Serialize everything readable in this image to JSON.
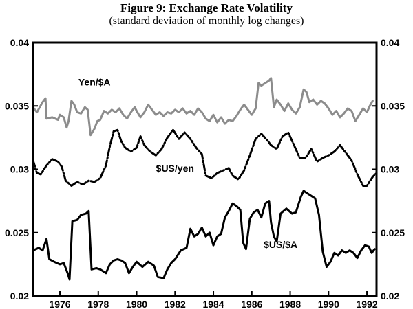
{
  "page": {
    "title": "Figure 9: Exchange Rate Volatility",
    "subtitle": "(standard deviation of monthly log changes)"
  },
  "chart_data": {
    "type": "line",
    "title": "Figure 9: Exchange Rate Volatility",
    "subtitle": "(standard deviation of monthly log changes)",
    "xlabel": "",
    "ylabel": "",
    "xlim": [
      1974.6,
      1992.5
    ],
    "ylim": [
      0.02,
      0.04
    ],
    "x_ticks": [
      1976,
      1978,
      1980,
      1982,
      1984,
      1986,
      1988,
      1990,
      1992
    ],
    "x_tick_labels": [
      "1976",
      "1978",
      "1980",
      "1982",
      "1984",
      "1986",
      "1988",
      "1990",
      "1992"
    ],
    "y_ticks": [
      0.02,
      0.025,
      0.03,
      0.035,
      0.04
    ],
    "y_tick_labels_left": [
      "0.02",
      "0.025",
      "0.03",
      "0.035",
      "0.04"
    ],
    "y_tick_labels_right": [
      "0.02",
      "0.025",
      "0.03",
      "0.035",
      "0.04"
    ],
    "grid": false,
    "series": [
      {
        "name": "Yen/$A",
        "color": "#8c8c8c",
        "style": "solid",
        "label_at": [
          1977.8,
          0.0366
        ],
        "points": [
          [
            1974.6,
            0.0349
          ],
          [
            1974.8,
            0.0345
          ],
          [
            1975.1,
            0.0353
          ],
          [
            1975.25,
            0.0356
          ],
          [
            1975.3,
            0.034
          ],
          [
            1975.6,
            0.0341
          ],
          [
            1975.9,
            0.0339
          ],
          [
            1976.0,
            0.0343
          ],
          [
            1976.2,
            0.0341
          ],
          [
            1976.35,
            0.0333
          ],
          [
            1976.45,
            0.0338
          ],
          [
            1976.6,
            0.0354
          ],
          [
            1976.75,
            0.0351
          ],
          [
            1976.9,
            0.0345
          ],
          [
            1977.1,
            0.0344
          ],
          [
            1977.3,
            0.0349
          ],
          [
            1977.45,
            0.0347
          ],
          [
            1977.6,
            0.0327
          ],
          [
            1977.8,
            0.0332
          ],
          [
            1977.95,
            0.0338
          ],
          [
            1978.1,
            0.0339
          ],
          [
            1978.3,
            0.0346
          ],
          [
            1978.5,
            0.0344
          ],
          [
            1978.7,
            0.0347
          ],
          [
            1978.9,
            0.0345
          ],
          [
            1979.1,
            0.0348
          ],
          [
            1979.3,
            0.0343
          ],
          [
            1979.5,
            0.034
          ],
          [
            1979.7,
            0.0345
          ],
          [
            1979.9,
            0.0349
          ],
          [
            1980.0,
            0.0346
          ],
          [
            1980.2,
            0.0341
          ],
          [
            1980.4,
            0.0345
          ],
          [
            1980.6,
            0.0351
          ],
          [
            1980.8,
            0.0347
          ],
          [
            1981.0,
            0.0343
          ],
          [
            1981.2,
            0.0345
          ],
          [
            1981.4,
            0.0342
          ],
          [
            1981.6,
            0.0345
          ],
          [
            1981.8,
            0.0344
          ],
          [
            1982.0,
            0.0347
          ],
          [
            1982.2,
            0.0345
          ],
          [
            1982.4,
            0.0348
          ],
          [
            1982.6,
            0.0344
          ],
          [
            1982.8,
            0.0346
          ],
          [
            1983.0,
            0.0343
          ],
          [
            1983.2,
            0.0348
          ],
          [
            1983.4,
            0.0345
          ],
          [
            1983.6,
            0.034
          ],
          [
            1983.8,
            0.0338
          ],
          [
            1984.0,
            0.0343
          ],
          [
            1984.2,
            0.0337
          ],
          [
            1984.4,
            0.0341
          ],
          [
            1984.6,
            0.0336
          ],
          [
            1984.8,
            0.0339
          ],
          [
            1985.0,
            0.0338
          ],
          [
            1985.2,
            0.0342
          ],
          [
            1985.4,
            0.0347
          ],
          [
            1985.6,
            0.0351
          ],
          [
            1985.8,
            0.0347
          ],
          [
            1986.0,
            0.0343
          ],
          [
            1986.2,
            0.0348
          ],
          [
            1986.35,
            0.0368
          ],
          [
            1986.5,
            0.0366
          ],
          [
            1986.7,
            0.0368
          ],
          [
            1986.9,
            0.037
          ],
          [
            1987.0,
            0.0372
          ],
          [
            1987.15,
            0.0349
          ],
          [
            1987.3,
            0.0355
          ],
          [
            1987.5,
            0.0351
          ],
          [
            1987.7,
            0.0346
          ],
          [
            1987.9,
            0.0352
          ],
          [
            1988.1,
            0.0347
          ],
          [
            1988.3,
            0.0344
          ],
          [
            1988.5,
            0.0349
          ],
          [
            1988.7,
            0.0363
          ],
          [
            1988.85,
            0.0361
          ],
          [
            1989.0,
            0.0353
          ],
          [
            1989.2,
            0.0355
          ],
          [
            1989.4,
            0.0351
          ],
          [
            1989.6,
            0.0354
          ],
          [
            1989.8,
            0.0352
          ],
          [
            1990.0,
            0.0348
          ],
          [
            1990.2,
            0.0343
          ],
          [
            1990.4,
            0.0346
          ],
          [
            1990.6,
            0.0341
          ],
          [
            1990.8,
            0.0344
          ],
          [
            1991.0,
            0.0348
          ],
          [
            1991.2,
            0.0346
          ],
          [
            1991.4,
            0.0338
          ],
          [
            1991.6,
            0.0343
          ],
          [
            1991.8,
            0.0348
          ],
          [
            1992.0,
            0.0345
          ],
          [
            1992.15,
            0.035
          ],
          [
            1992.3,
            0.0354
          ]
        ]
      },
      {
        "name": "$US/yen",
        "color": "#000000",
        "style": "dashdot",
        "label_at": [
          1982.0,
          0.0298
        ],
        "points": [
          [
            1974.6,
            0.0307
          ],
          [
            1974.8,
            0.0297
          ],
          [
            1975.0,
            0.0296
          ],
          [
            1975.3,
            0.0303
          ],
          [
            1975.6,
            0.0308
          ],
          [
            1975.9,
            0.0306
          ],
          [
            1976.1,
            0.0302
          ],
          [
            1976.3,
            0.0291
          ],
          [
            1976.6,
            0.0287
          ],
          [
            1976.9,
            0.029
          ],
          [
            1977.2,
            0.0288
          ],
          [
            1977.5,
            0.0291
          ],
          [
            1977.8,
            0.029
          ],
          [
            1978.1,
            0.0293
          ],
          [
            1978.4,
            0.0303
          ],
          [
            1978.6,
            0.0318
          ],
          [
            1978.8,
            0.033
          ],
          [
            1979.0,
            0.0331
          ],
          [
            1979.2,
            0.0322
          ],
          [
            1979.4,
            0.0317
          ],
          [
            1979.7,
            0.0314
          ],
          [
            1980.0,
            0.0317
          ],
          [
            1980.2,
            0.0326
          ],
          [
            1980.4,
            0.0319
          ],
          [
            1980.7,
            0.0314
          ],
          [
            1981.0,
            0.0311
          ],
          [
            1981.3,
            0.0316
          ],
          [
            1981.6,
            0.0325
          ],
          [
            1981.9,
            0.0331
          ],
          [
            1982.2,
            0.0324
          ],
          [
            1982.5,
            0.0329
          ],
          [
            1982.8,
            0.0324
          ],
          [
            1983.1,
            0.0317
          ],
          [
            1983.4,
            0.0312
          ],
          [
            1983.6,
            0.0295
          ],
          [
            1983.9,
            0.0293
          ],
          [
            1984.2,
            0.0297
          ],
          [
            1984.5,
            0.0299
          ],
          [
            1984.8,
            0.0301
          ],
          [
            1985.0,
            0.0295
          ],
          [
            1985.3,
            0.0292
          ],
          [
            1985.6,
            0.0299
          ],
          [
            1985.9,
            0.0311
          ],
          [
            1986.2,
            0.0324
          ],
          [
            1986.5,
            0.0328
          ],
          [
            1986.8,
            0.0323
          ],
          [
            1987.0,
            0.0319
          ],
          [
            1987.3,
            0.0316
          ],
          [
            1987.6,
            0.0326
          ],
          [
            1987.9,
            0.0329
          ],
          [
            1988.2,
            0.0319
          ],
          [
            1988.5,
            0.0309
          ],
          [
            1988.8,
            0.0309
          ],
          [
            1989.1,
            0.0316
          ],
          [
            1989.4,
            0.0306
          ],
          [
            1989.7,
            0.0309
          ],
          [
            1990.0,
            0.0311
          ],
          [
            1990.3,
            0.0314
          ],
          [
            1990.6,
            0.0319
          ],
          [
            1990.9,
            0.0313
          ],
          [
            1991.2,
            0.0307
          ],
          [
            1991.5,
            0.0296
          ],
          [
            1991.8,
            0.0287
          ],
          [
            1992.0,
            0.0287
          ],
          [
            1992.3,
            0.0294
          ],
          [
            1992.5,
            0.0297
          ]
        ]
      },
      {
        "name": "$US/$A",
        "color": "#000000",
        "style": "solid",
        "label_at": [
          1987.5,
          0.0238
        ],
        "points": [
          [
            1974.6,
            0.0236
          ],
          [
            1974.9,
            0.0238
          ],
          [
            1975.1,
            0.0236
          ],
          [
            1975.3,
            0.0245
          ],
          [
            1975.45,
            0.0229
          ],
          [
            1975.7,
            0.0227
          ],
          [
            1976.0,
            0.0225
          ],
          [
            1976.2,
            0.0226
          ],
          [
            1976.4,
            0.0218
          ],
          [
            1976.5,
            0.0213
          ],
          [
            1976.65,
            0.0259
          ],
          [
            1976.9,
            0.026
          ],
          [
            1977.1,
            0.0264
          ],
          [
            1977.35,
            0.0265
          ],
          [
            1977.5,
            0.0267
          ],
          [
            1977.65,
            0.0221
          ],
          [
            1977.9,
            0.0222
          ],
          [
            1978.1,
            0.0221
          ],
          [
            1978.4,
            0.0218
          ],
          [
            1978.6,
            0.0225
          ],
          [
            1978.8,
            0.0228
          ],
          [
            1979.0,
            0.0229
          ],
          [
            1979.2,
            0.0228
          ],
          [
            1979.4,
            0.0226
          ],
          [
            1979.6,
            0.0218
          ],
          [
            1979.8,
            0.0223
          ],
          [
            1980.0,
            0.0227
          ],
          [
            1980.3,
            0.0223
          ],
          [
            1980.6,
            0.0227
          ],
          [
            1980.9,
            0.0224
          ],
          [
            1981.1,
            0.0215
          ],
          [
            1981.4,
            0.0214
          ],
          [
            1981.6,
            0.0221
          ],
          [
            1981.8,
            0.0226
          ],
          [
            1982.0,
            0.0229
          ],
          [
            1982.3,
            0.0236
          ],
          [
            1982.6,
            0.0238
          ],
          [
            1982.8,
            0.0253
          ],
          [
            1983.0,
            0.0247
          ],
          [
            1983.2,
            0.0249
          ],
          [
            1983.4,
            0.0254
          ],
          [
            1983.6,
            0.0247
          ],
          [
            1983.8,
            0.025
          ],
          [
            1984.0,
            0.024
          ],
          [
            1984.2,
            0.0247
          ],
          [
            1984.4,
            0.0249
          ],
          [
            1984.6,
            0.0262
          ],
          [
            1984.8,
            0.0267
          ],
          [
            1985.0,
            0.0273
          ],
          [
            1985.2,
            0.0271
          ],
          [
            1985.4,
            0.0268
          ],
          [
            1985.55,
            0.0242
          ],
          [
            1985.7,
            0.0237
          ],
          [
            1985.9,
            0.0261
          ],
          [
            1986.1,
            0.0266
          ],
          [
            1986.3,
            0.0268
          ],
          [
            1986.5,
            0.0262
          ],
          [
            1986.7,
            0.0273
          ],
          [
            1986.9,
            0.0275
          ],
          [
            1987.0,
            0.0258
          ],
          [
            1987.15,
            0.0247
          ],
          [
            1987.3,
            0.0243
          ],
          [
            1987.5,
            0.0265
          ],
          [
            1987.8,
            0.0269
          ],
          [
            1988.1,
            0.0265
          ],
          [
            1988.3,
            0.0266
          ],
          [
            1988.55,
            0.0278
          ],
          [
            1988.7,
            0.0283
          ],
          [
            1988.9,
            0.0281
          ],
          [
            1989.1,
            0.0279
          ],
          [
            1989.3,
            0.0277
          ],
          [
            1989.5,
            0.0264
          ],
          [
            1989.7,
            0.0235
          ],
          [
            1989.9,
            0.0223
          ],
          [
            1990.1,
            0.0227
          ],
          [
            1990.3,
            0.0234
          ],
          [
            1990.5,
            0.0232
          ],
          [
            1990.7,
            0.0236
          ],
          [
            1990.9,
            0.0234
          ],
          [
            1991.1,
            0.0236
          ],
          [
            1991.3,
            0.0234
          ],
          [
            1991.5,
            0.023
          ],
          [
            1991.7,
            0.0236
          ],
          [
            1991.9,
            0.024
          ],
          [
            1992.1,
            0.0239
          ],
          [
            1992.25,
            0.0234
          ],
          [
            1992.4,
            0.0237
          ]
        ]
      }
    ]
  }
}
